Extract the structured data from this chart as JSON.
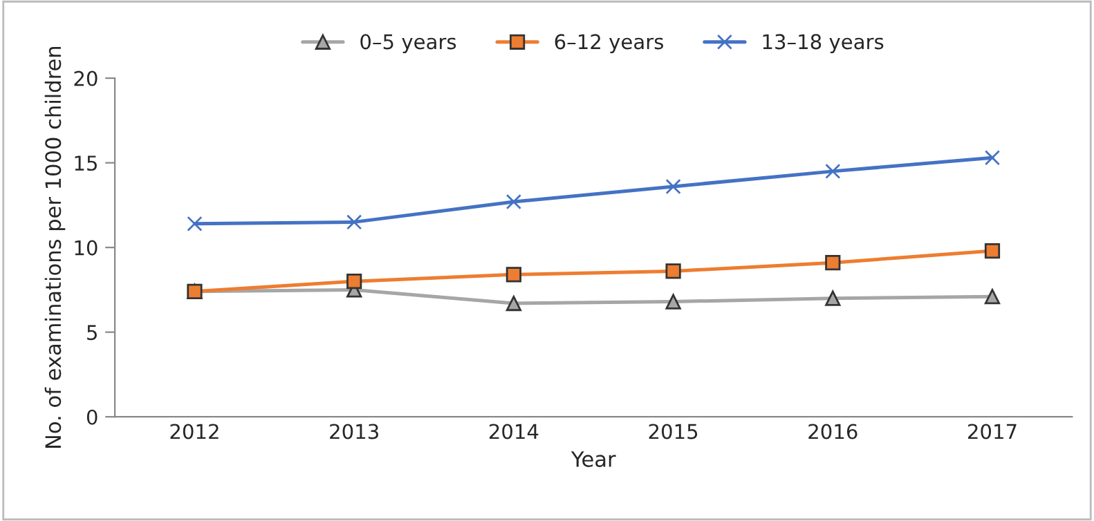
{
  "chart_data": {
    "type": "line",
    "xlabel": "Year",
    "ylabel": "No. of examinations per 1000 children",
    "categories": [
      "2012",
      "2013",
      "2014",
      "2015",
      "2016",
      "2017"
    ],
    "series": [
      {
        "name": "0–5 years",
        "color": "#a6a6a6",
        "marker": "triangle",
        "values": [
          7.4,
          7.5,
          6.7,
          6.8,
          7.0,
          7.1
        ]
      },
      {
        "name": "6–12 years",
        "color": "#ed7d31",
        "marker": "square",
        "values": [
          7.4,
          8.0,
          8.4,
          8.6,
          9.1,
          9.8
        ]
      },
      {
        "name": "13–18 years",
        "color": "#4472c4",
        "marker": "cross",
        "values": [
          11.4,
          11.5,
          12.7,
          13.6,
          14.5,
          15.3
        ]
      }
    ],
    "ylim": [
      0,
      20
    ],
    "yticks": [
      0,
      5,
      10,
      15,
      20
    ],
    "grid": false,
    "legend": "top",
    "line_style": "solid"
  }
}
